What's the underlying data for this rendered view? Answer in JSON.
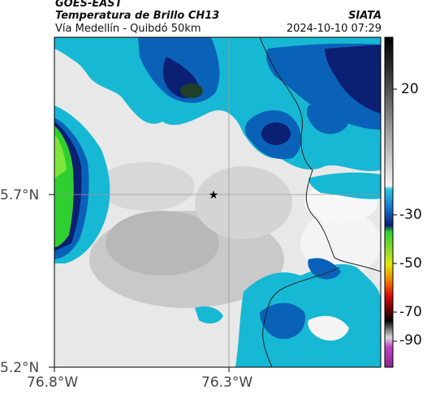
{
  "header": {
    "satellite": "GOES-EAST",
    "product": "Temperatura de Brillo CH13",
    "route": "Vía Medellín - Quibdó 50km",
    "org": "SIATA",
    "datetime": "2024-10-10 07:29"
  },
  "map": {
    "lat_labels": [
      "5.7°N",
      "5.2°N"
    ],
    "lon_labels": [
      "76.8°W",
      "76.3°W"
    ],
    "marker": "star"
  },
  "colorbar": {
    "ticks": [
      "20",
      "-30",
      "-50",
      "-70",
      "-90"
    ],
    "colors": {
      "warm_light": "#f2f2f2",
      "warm_mid": "#9a9a9a",
      "cyan": "#17b8d3",
      "blue": "#0a62b8",
      "navy": "#0b1f73",
      "green": "#2fcf2f",
      "yellow": "#e6e600",
      "red": "#e01010",
      "black": "#050505",
      "magenta": "#c040c0"
    }
  }
}
